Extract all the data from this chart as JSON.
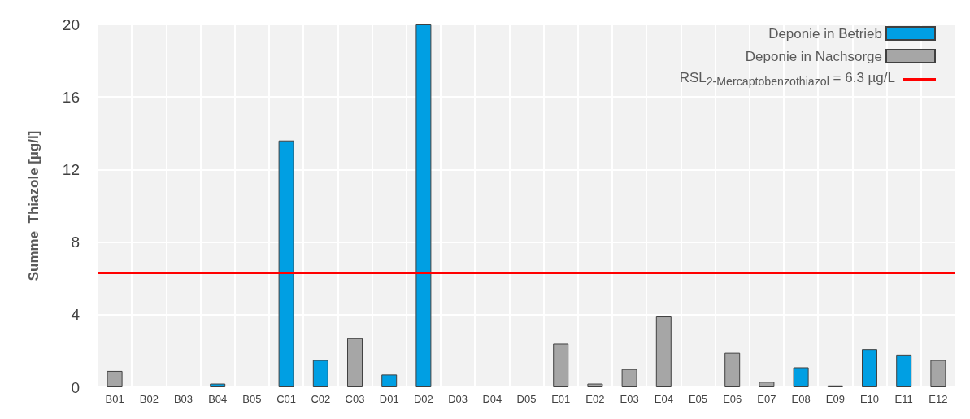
{
  "chart_data": {
    "type": "bar",
    "ylabel": "Summe  Thiazole [µg/l]",
    "categories": [
      "B01",
      "B02",
      "B03",
      "B04",
      "B05",
      "C01",
      "C02",
      "C03",
      "D01",
      "D02",
      "D03",
      "D04",
      "D05",
      "E01",
      "E02",
      "E03",
      "E04",
      "E05",
      "E06",
      "E07",
      "E08",
      "E09",
      "E10",
      "E11",
      "E12"
    ],
    "stacked": true,
    "series": [
      {
        "name": "Deponie in Betrieb",
        "color": "#009fe3",
        "values": [
          null,
          null,
          null,
          0.2,
          null,
          13.6,
          1.5,
          null,
          0.7,
          20,
          null,
          null,
          null,
          null,
          null,
          null,
          null,
          null,
          null,
          null,
          1.1,
          null,
          2.1,
          1.8,
          null
        ]
      },
      {
        "name": "Deponie in Nachsorge",
        "color": "#a6a6a6",
        "values": [
          0.9,
          0,
          0,
          null,
          0,
          null,
          null,
          2.7,
          null,
          null,
          0,
          0,
          0,
          2.4,
          0.2,
          1.0,
          3.9,
          0,
          1.9,
          0.3,
          null,
          0.1,
          null,
          null,
          1.5
        ]
      }
    ],
    "ref_lines": [
      {
        "axis": "y",
        "value": 6.3,
        "label": "RSL$_{2-Mercaptobenzothiazol}$ = 6.3 µg/L",
        "color": "#ff0000"
      }
    ],
    "ylim": [
      0,
      20
    ],
    "yticks": [
      0,
      4,
      8,
      12,
      16,
      20
    ],
    "grid": true,
    "legend": "top right"
  }
}
